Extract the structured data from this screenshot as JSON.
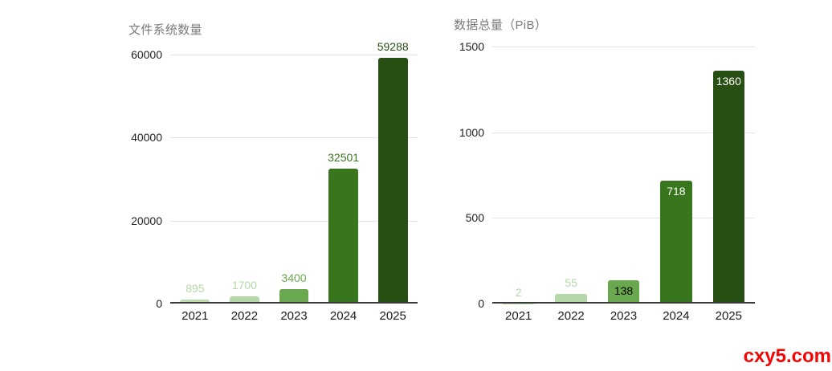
{
  "page": {
    "background": "#ffffff",
    "watermark": {
      "text": "cxy5.com",
      "color": "#f20505"
    }
  },
  "chart_data": [
    {
      "type": "bar",
      "title": "文件系统数量",
      "title_color": "#7a7a7a",
      "categories": [
        "2021",
        "2022",
        "2023",
        "2024",
        "2025"
      ],
      "values": [
        895,
        1700,
        3400,
        32501,
        59288
      ],
      "ylim": [
        0,
        60000
      ],
      "yticks": [
        0,
        20000,
        40000,
        60000
      ],
      "ytick_labels": [
        "0",
        "20000",
        "40000",
        "60000"
      ],
      "grid": true,
      "legend_position": "none",
      "bar_colors": [
        "#bfdcb1",
        "#b6d7a8",
        "#6aa84f",
        "#38761d",
        "#274e13"
      ],
      "value_labels": [
        {
          "text": "895",
          "color": "#b6d7a8",
          "inside": false
        },
        {
          "text": "1700",
          "color": "#b6d7a8",
          "inside": false
        },
        {
          "text": "3400",
          "color": "#6aa84f",
          "inside": false
        },
        {
          "text": "32501",
          "color": "#38761d",
          "inside": false
        },
        {
          "text": "59288",
          "color": "#274e13",
          "inside": false
        }
      ]
    },
    {
      "type": "bar",
      "title": "数据总量（PiB）",
      "title_color": "#7a7a7a",
      "categories": [
        "2021",
        "2022",
        "2023",
        "2024",
        "2025"
      ],
      "values": [
        2,
        55,
        138,
        718,
        1360
      ],
      "ylim": [
        0,
        1500
      ],
      "yticks": [
        0,
        500,
        1000,
        1500
      ],
      "ytick_labels": [
        "0",
        "500",
        "1000",
        "1500"
      ],
      "grid": true,
      "legend_position": "none",
      "bar_colors": [
        "#bfdcb1",
        "#b6d7a8",
        "#6aa84f",
        "#38761d",
        "#274e13"
      ],
      "value_labels": [
        {
          "text": "2",
          "color": "#b6d7a8",
          "inside": false
        },
        {
          "text": "55",
          "color": "#b6d7a8",
          "inside": false
        },
        {
          "text": "138",
          "color": "#000000",
          "inside": true
        },
        {
          "text": "718",
          "color": "#ffffff",
          "inside": true
        },
        {
          "text": "1360",
          "color": "#ffffff",
          "inside": true
        }
      ]
    }
  ]
}
